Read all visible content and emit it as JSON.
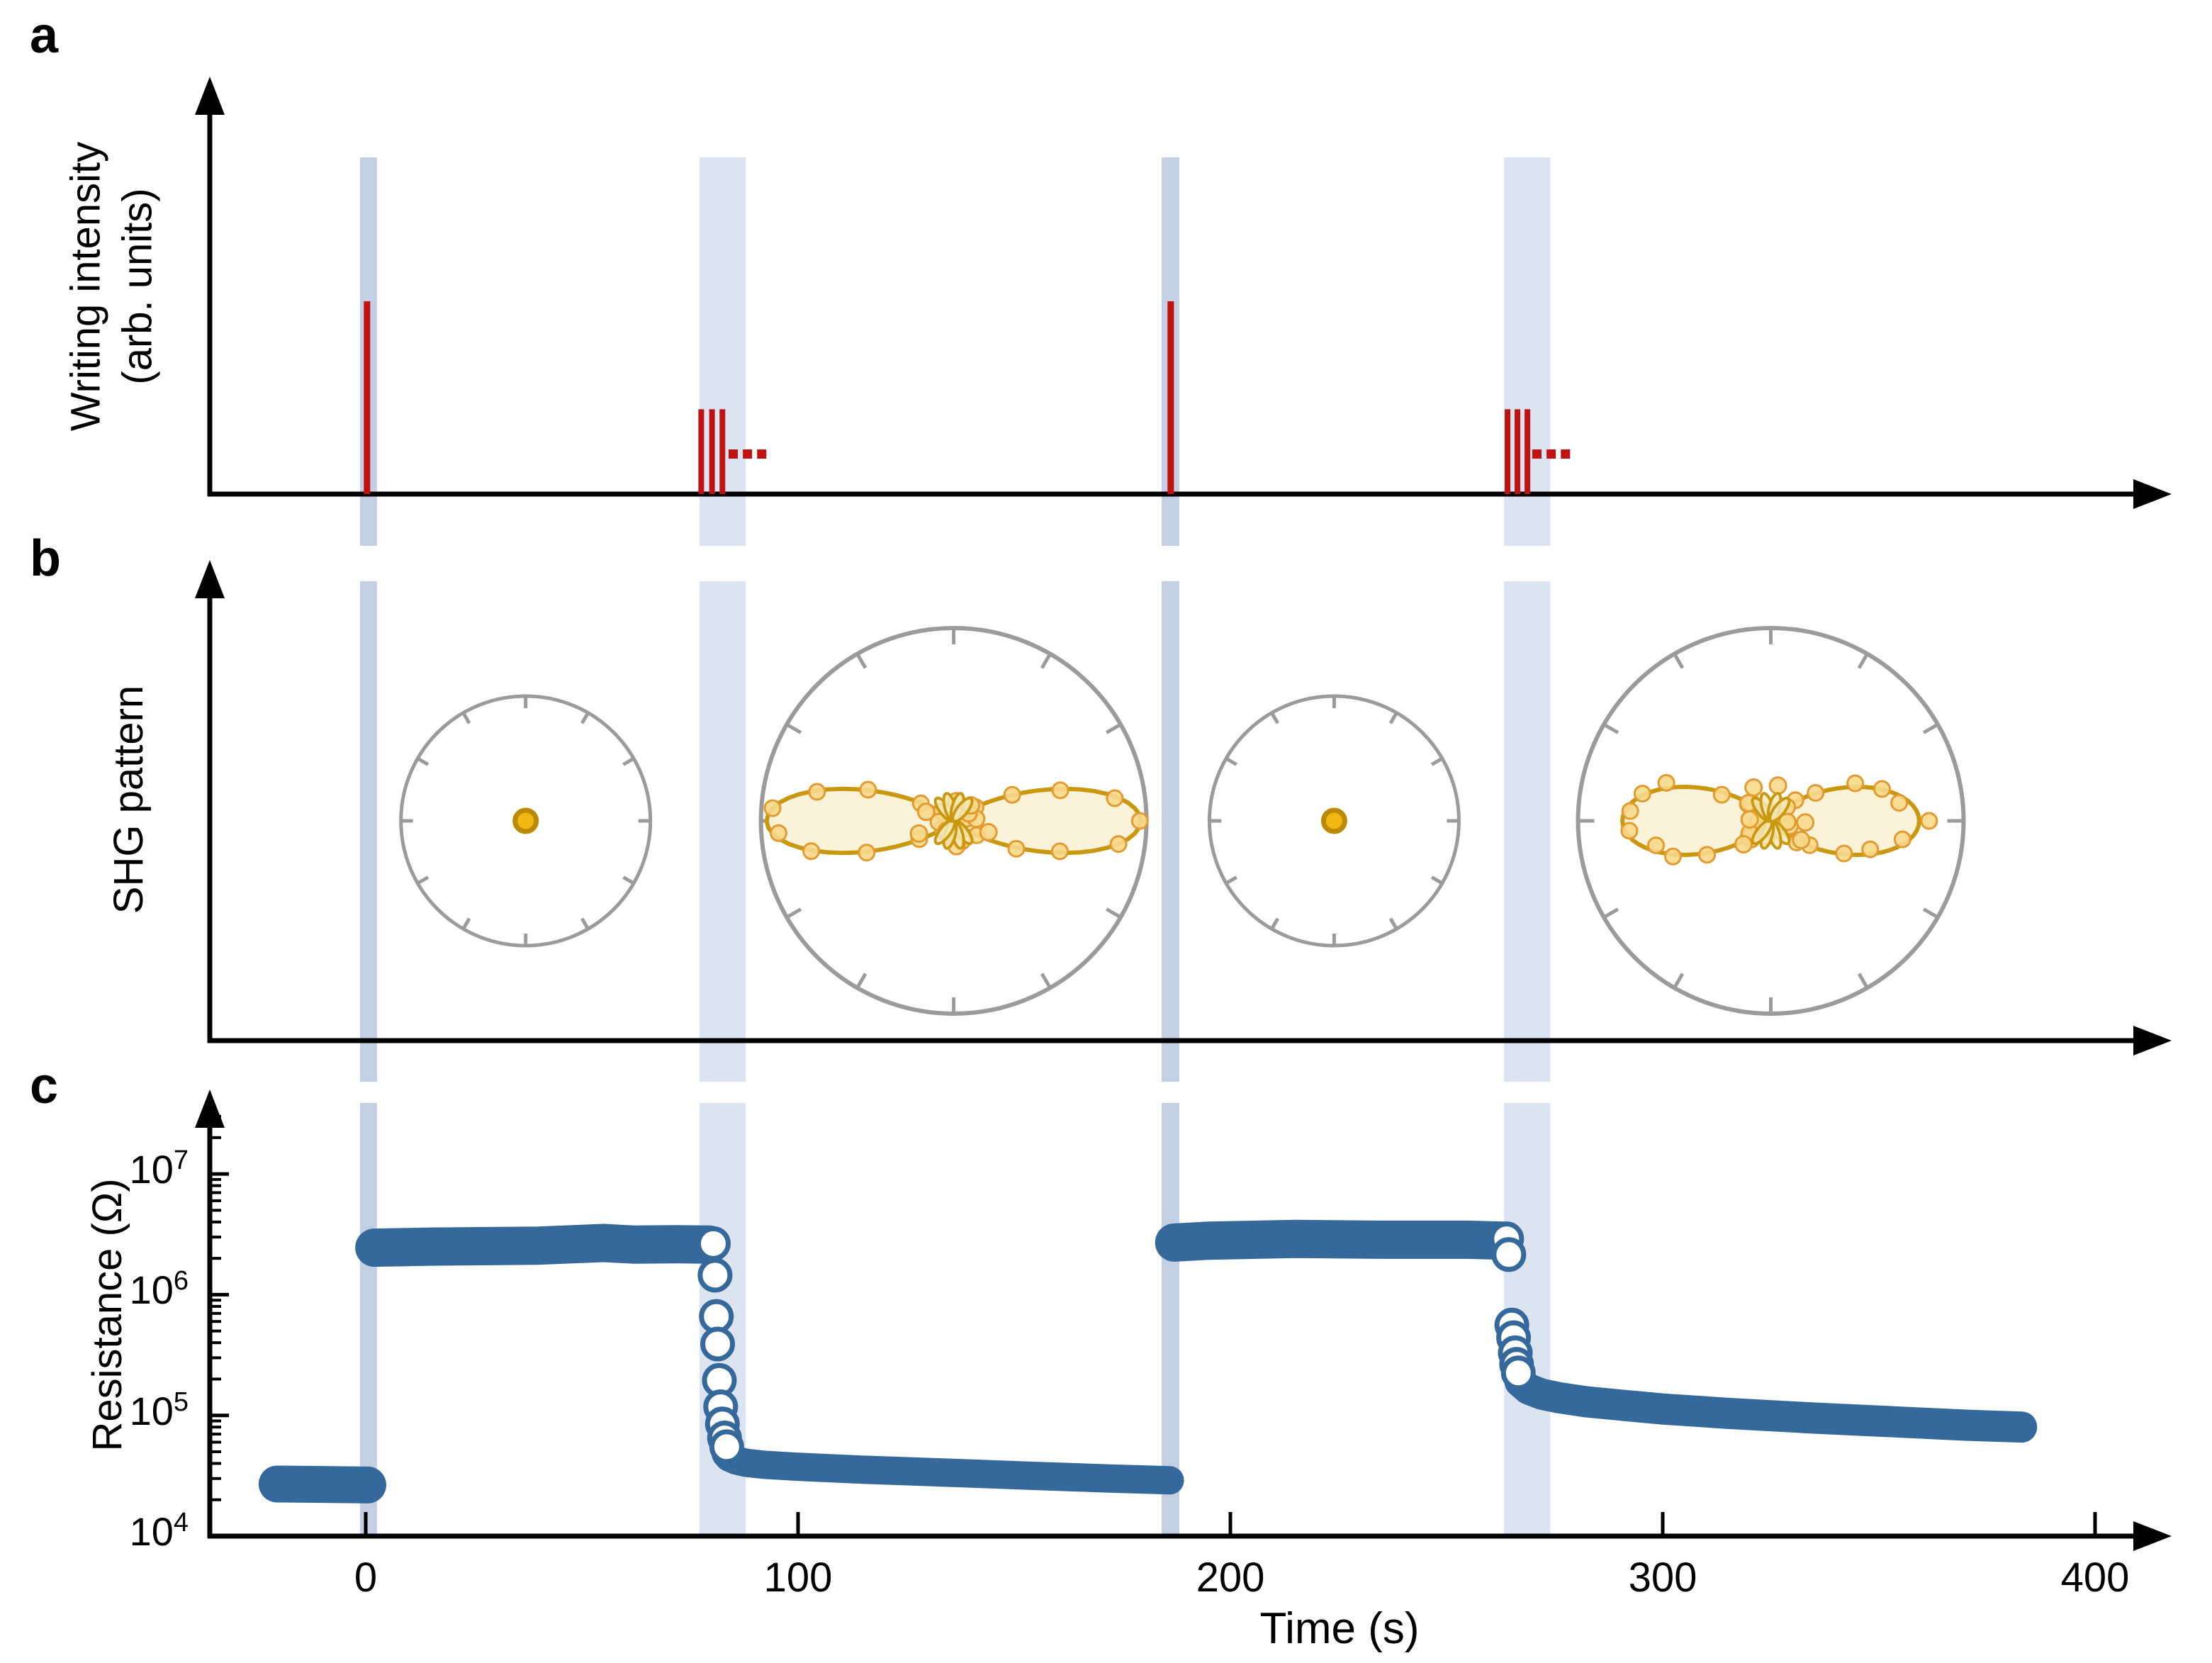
{
  "labels": {
    "panel_a": "a",
    "panel_b": "b",
    "panel_c": "c",
    "ylabel_a_line1": "Writing intensity",
    "ylabel_a_line2": "(arb. units)",
    "ylabel_b": "SHG pattern",
    "ylabel_c": "Resistance (Ω)",
    "xlabel": "Time (s)",
    "ytick_base": "10"
  },
  "chart_data": {
    "type": "multi-panel",
    "xlabel": "Time (s)",
    "x_range_s": [
      -36,
      414
    ],
    "highlight_bands": [
      {
        "t0": -1.3,
        "t1": 2.6,
        "tone": "dark"
      },
      {
        "t0": 77.2,
        "t1": 87.9,
        "tone": "light"
      },
      {
        "t0": 184.1,
        "t1": 188.2,
        "tone": "dark"
      },
      {
        "t0": 263.3,
        "t1": 274.0,
        "tone": "light"
      }
    ],
    "panels": {
      "a": {
        "type": "pulse-timeline",
        "ylabel": "Writing intensity (arb. units)",
        "pulses": [
          {
            "t": 0.3,
            "amp": 1.0
          },
          {
            "t": 77.6,
            "amp": 0.44
          },
          {
            "t": 80.1,
            "amp": 0.44
          },
          {
            "t": 82.5,
            "amp": 0.44
          },
          {
            "t": 186.2,
            "amp": 1.0
          },
          {
            "t": 264.1,
            "amp": 0.44
          },
          {
            "t": 266.4,
            "amp": 0.44
          },
          {
            "t": 268.7,
            "amp": 0.44
          }
        ],
        "ellipsis_dashes": [
          {
            "t": [
              85.0,
              88.3,
              91.6
            ]
          },
          {
            "t": [
              270.9,
              274.2,
              277.5
            ]
          }
        ]
      },
      "b": {
        "type": "polar-patterns",
        "ylabel": "SHG pattern",
        "patterns": [
          {
            "t": 37,
            "size": "small",
            "kind": "point"
          },
          {
            "t": 136,
            "size": "large",
            "kind": "two_lobe",
            "lobe_len": 0.97,
            "sharpness": 12,
            "jitter": 10,
            "seed": 7
          },
          {
            "t": 224,
            "size": "small",
            "kind": "point"
          },
          {
            "t": 325,
            "size": "large",
            "kind": "two_lobe",
            "lobe_len": 0.77,
            "sharpness": 6.5,
            "jitter": 18,
            "seed": 13
          }
        ]
      },
      "c": {
        "type": "scatter-log",
        "ylabel": "Resistance (Ω)",
        "ylim": [
          10000.0,
          30000000.0
        ],
        "xticks": [
          0,
          100,
          200,
          300,
          400
        ],
        "ytick_exponents": [
          "4",
          "5",
          "6",
          "7"
        ],
        "series_segments": [
          {
            "w": 52,
            "pts": [
              [
                -20.5,
                27000.0
              ],
              [
                -10,
                26800.0
              ],
              [
                0.5,
                26500.0
              ]
            ]
          },
          {
            "w": 54,
            "pts": [
              [
                2,
                2450000.0
              ],
              [
                15,
                2500000.0
              ],
              [
                40,
                2550000.0
              ],
              [
                55,
                2680000.0
              ],
              [
                62,
                2600000.0
              ],
              [
                72,
                2620000.0
              ],
              [
                79.5,
                2600000.0
              ]
            ]
          },
          {
            "w": 40,
            "pts": [
              [
                83.3,
                48000.0
              ],
              [
                84,
                45000.0
              ],
              [
                85.5,
                42500.0
              ],
              [
                88,
                40500.0
              ],
              [
                92,
                39000.0
              ],
              [
                100,
                37500.0
              ],
              [
                115,
                35500.0
              ],
              [
                135,
                33500.0
              ],
              [
                155,
                31500.0
              ],
              [
                172,
                30000.0
              ],
              [
                186,
                29000.0
              ]
            ]
          },
          {
            "w": 54,
            "pts": [
              [
                187,
                2700000.0
              ],
              [
                195,
                2800000.0
              ],
              [
                215,
                2900000.0
              ],
              [
                235,
                2850000.0
              ],
              [
                255,
                2850000.0
              ],
              [
                263.2,
                2800000.0
              ]
            ]
          },
          {
            "w": 44,
            "pts": [
              [
                267,
                190000.0
              ],
              [
                269,
                165000.0
              ],
              [
                272,
                150000.0
              ],
              [
                276,
                140000.0
              ],
              [
                282,
                130000.0
              ],
              [
                290,
                122000.0
              ],
              [
                300,
                113000.0
              ],
              [
                315,
                104000.0
              ],
              [
                335,
                95000.0
              ],
              [
                355,
                88000.0
              ],
              [
                370,
                83000.0
              ],
              [
                383,
                80000.0
              ]
            ]
          }
        ],
        "transition_points": [
          [
            80.4,
            2650000.0
          ],
          [
            80.8,
            1450000.0
          ],
          [
            81.1,
            660000.0
          ],
          [
            81.4,
            390000.0
          ],
          [
            81.8,
            195000.0
          ],
          [
            82.1,
            118000.0
          ],
          [
            82.5,
            85000.0
          ],
          [
            83.0,
            65000.0
          ],
          [
            83.5,
            55000.0
          ],
          [
            263.9,
            2900000.0
          ],
          [
            264.4,
            2150000.0
          ],
          [
            265.1,
            560000.0
          ],
          [
            265.5,
            440000.0
          ],
          [
            265.9,
            330000.0
          ],
          [
            266.2,
            265000.0
          ],
          [
            266.6,
            225000.0
          ]
        ]
      }
    },
    "colors": {
      "data_blue": "#36699B",
      "pulse_red": "#C11212",
      "band_light": "#DCE3F1",
      "band_dark": "#C4CFE4",
      "polar_ring_gray": "#9B9B9B",
      "shg_gold": "#C9980E",
      "shg_fill": "#FBF2D7",
      "shg_point_fill": "#F7D98C",
      "shg_point_stroke": "#E39A2E",
      "center_dot_fill": "#F2B811",
      "center_dot_stroke": "#BA8A00",
      "axis_black": "#000000"
    }
  }
}
